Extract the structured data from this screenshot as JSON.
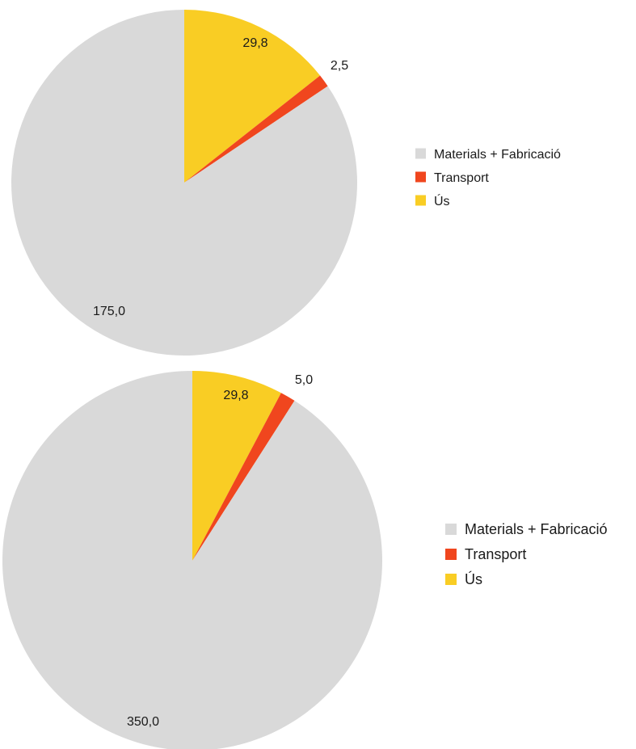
{
  "chart_data": [
    {
      "type": "pie",
      "categories": [
        "Materials + Fabricació",
        "Transport",
        "Ús"
      ],
      "values": [
        175.0,
        2.5,
        29.8
      ],
      "value_labels": [
        "175,0",
        "2,5",
        "29,8"
      ],
      "colors": [
        "#d9d9d9",
        "#f0461e",
        "#f9cd24"
      ],
      "start": "12 o'clock, Ús first going clockwise, then Transport, then Materials + Fabricació",
      "legend": "right",
      "title": ""
    },
    {
      "type": "pie",
      "categories": [
        "Materials + Fabricació",
        "Transport",
        "Ús"
      ],
      "values": [
        350.0,
        5.0,
        29.8
      ],
      "value_labels": [
        "350,0",
        "5,0",
        "29,8"
      ],
      "colors": [
        "#d9d9d9",
        "#f0461e",
        "#f9cd24"
      ],
      "start": "12 o'clock, Ús first going clockwise, then Transport, then Materials + Fabricació",
      "legend": "right",
      "title": ""
    }
  ]
}
